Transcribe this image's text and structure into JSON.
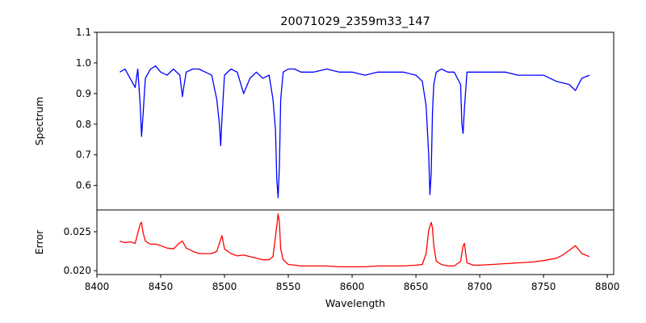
{
  "chart_data": [
    {
      "type": "line",
      "panel": "top",
      "title": "20071029_2359m33_147",
      "xlabel": "",
      "ylabel": "Spectrum",
      "xlim": [
        8400,
        8805
      ],
      "ylim": [
        0.52,
        1.1
      ],
      "xticks": [
        8400,
        8450,
        8500,
        8550,
        8600,
        8650,
        8700,
        8750,
        8800
      ],
      "yticks": [
        0.6,
        0.7,
        0.8,
        0.9,
        1.0,
        1.1
      ],
      "ytick_labels": [
        "0.6",
        "0.7",
        "0.8",
        "0.9",
        "1.0",
        "1.1"
      ],
      "grid": false,
      "series": [
        {
          "color": "#0000ff",
          "x": [
            8418,
            8422,
            8426,
            8430,
            8432,
            8434,
            8435,
            8436,
            8438,
            8442,
            8446,
            8450,
            8455,
            8460,
            8465,
            8467,
            8468,
            8470,
            8475,
            8480,
            8485,
            8490,
            8494,
            8496,
            8497,
            8498,
            8500,
            8505,
            8510,
            8515,
            8520,
            8525,
            8530,
            8535,
            8538,
            8540,
            8541,
            8542,
            8543,
            8544,
            8546,
            8550,
            8555,
            8560,
            8570,
            8580,
            8590,
            8600,
            8610,
            8620,
            8630,
            8640,
            8650,
            8655,
            8658,
            8660,
            8661,
            8662,
            8663,
            8664,
            8666,
            8670,
            8675,
            8680,
            8685,
            8686,
            8687,
            8688,
            8690,
            8695,
            8700,
            8710,
            8720,
            8730,
            8740,
            8750,
            8760,
            8770,
            8775,
            8780,
            8786
          ],
          "y": [
            0.97,
            0.98,
            0.95,
            0.92,
            0.98,
            0.86,
            0.76,
            0.82,
            0.95,
            0.98,
            0.99,
            0.97,
            0.96,
            0.98,
            0.96,
            0.89,
            0.92,
            0.97,
            0.98,
            0.98,
            0.97,
            0.96,
            0.88,
            0.8,
            0.73,
            0.82,
            0.96,
            0.98,
            0.97,
            0.9,
            0.95,
            0.97,
            0.95,
            0.96,
            0.88,
            0.78,
            0.62,
            0.56,
            0.66,
            0.88,
            0.97,
            0.98,
            0.98,
            0.97,
            0.97,
            0.98,
            0.97,
            0.97,
            0.96,
            0.97,
            0.97,
            0.97,
            0.96,
            0.94,
            0.86,
            0.7,
            0.57,
            0.64,
            0.84,
            0.93,
            0.97,
            0.98,
            0.97,
            0.97,
            0.93,
            0.8,
            0.77,
            0.85,
            0.97,
            0.97,
            0.97,
            0.97,
            0.97,
            0.96,
            0.96,
            0.96,
            0.94,
            0.93,
            0.91,
            0.95,
            0.96
          ]
        }
      ]
    },
    {
      "type": "line",
      "panel": "bottom",
      "title": "",
      "xlabel": "Wavelength",
      "ylabel": "Error",
      "xlim": [
        8400,
        8805
      ],
      "ylim": [
        0.0195,
        0.0278
      ],
      "xticks": [
        8400,
        8450,
        8500,
        8550,
        8600,
        8650,
        8700,
        8750,
        8800
      ],
      "yticks": [
        0.02,
        0.025
      ],
      "ytick_labels": [
        "0.020",
        "0.025"
      ],
      "grid": false,
      "series": [
        {
          "color": "#ff0000",
          "x": [
            8418,
            8422,
            8426,
            8430,
            8432,
            8434,
            8435,
            8436,
            8438,
            8442,
            8446,
            8450,
            8455,
            8460,
            8465,
            8467,
            8470,
            8475,
            8480,
            8485,
            8490,
            8494,
            8497,
            8498,
            8500,
            8505,
            8510,
            8515,
            8520,
            8525,
            8530,
            8535,
            8538,
            8541,
            8542,
            8543,
            8544,
            8546,
            8550,
            8555,
            8560,
            8570,
            8580,
            8590,
            8600,
            8610,
            8620,
            8630,
            8640,
            8650,
            8655,
            8658,
            8660,
            8662,
            8663,
            8664,
            8666,
            8670,
            8675,
            8680,
            8685,
            8687,
            8688,
            8690,
            8695,
            8700,
            8710,
            8720,
            8730,
            8740,
            8750,
            8760,
            8765,
            8770,
            8775,
            8780,
            8786
          ],
          "y": [
            0.0238,
            0.0236,
            0.0237,
            0.0235,
            0.0248,
            0.026,
            0.0262,
            0.025,
            0.0238,
            0.0234,
            0.0234,
            0.0232,
            0.0229,
            0.0228,
            0.0236,
            0.0238,
            0.0229,
            0.0225,
            0.0222,
            0.0222,
            0.0222,
            0.0225,
            0.024,
            0.0245,
            0.0228,
            0.0222,
            0.0219,
            0.022,
            0.0218,
            0.0216,
            0.0214,
            0.0214,
            0.0218,
            0.0258,
            0.0273,
            0.0262,
            0.0228,
            0.0214,
            0.0208,
            0.0207,
            0.0206,
            0.0206,
            0.0206,
            0.0205,
            0.0205,
            0.0205,
            0.0206,
            0.0206,
            0.0206,
            0.0207,
            0.0208,
            0.0222,
            0.0252,
            0.0262,
            0.0255,
            0.0232,
            0.0212,
            0.0208,
            0.0206,
            0.0206,
            0.0212,
            0.0232,
            0.0235,
            0.021,
            0.0207,
            0.0207,
            0.0208,
            0.0209,
            0.021,
            0.0211,
            0.0213,
            0.0216,
            0.022,
            0.0226,
            0.0232,
            0.0222,
            0.0218
          ]
        }
      ]
    }
  ]
}
